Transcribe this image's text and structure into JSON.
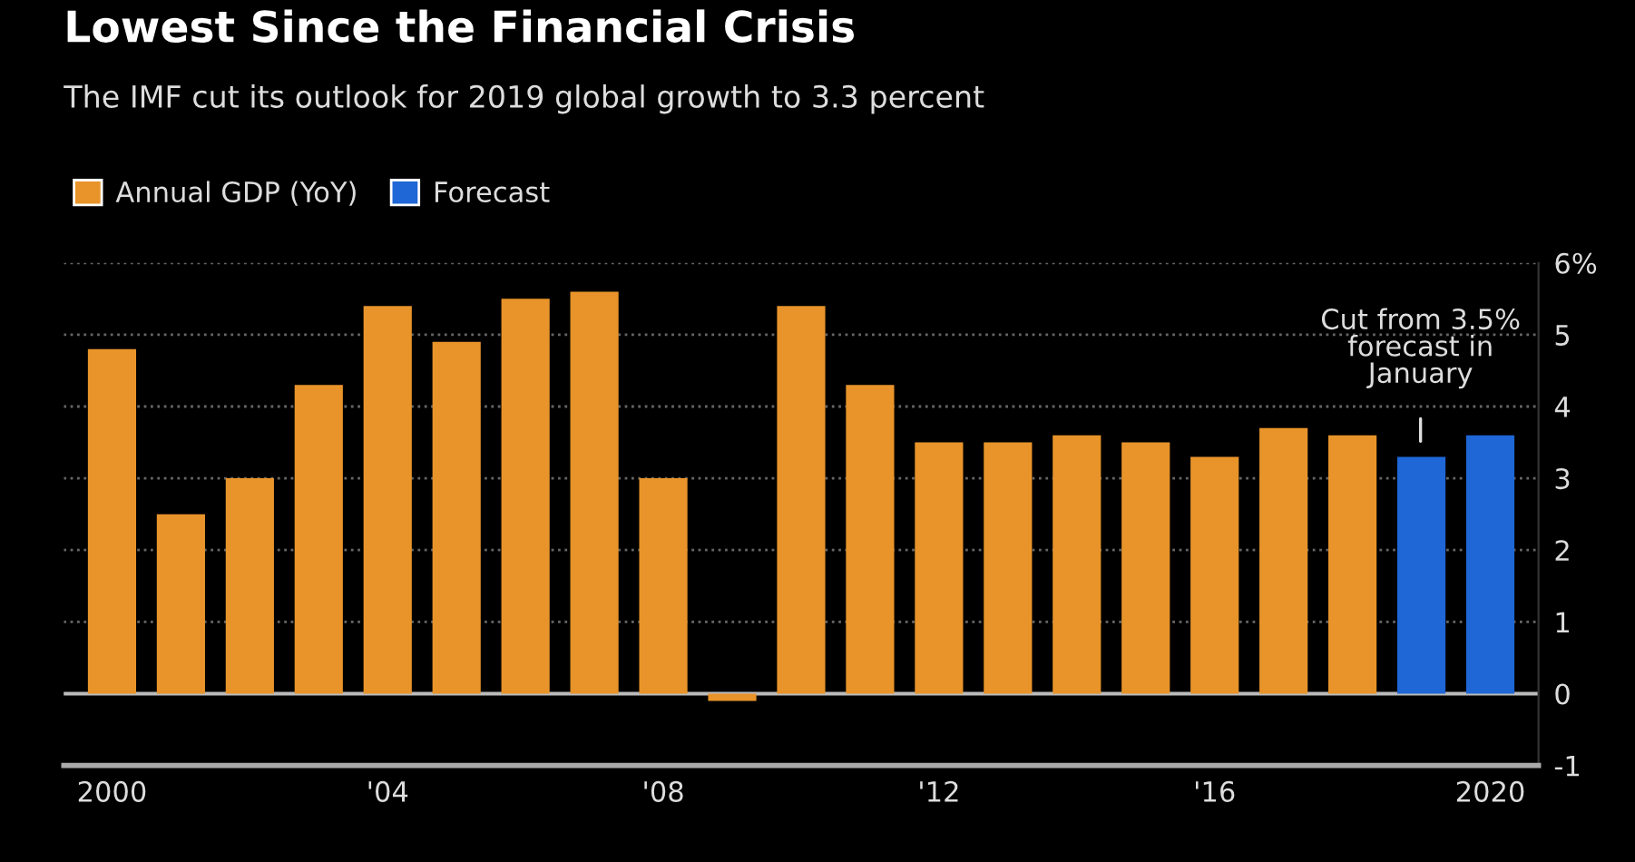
{
  "chart_data": {
    "type": "bar",
    "title": "Lowest Since the Financial Crisis",
    "subtitle": "The IMF cut its outlook for 2019 global growth to 3.3 percent",
    "series": [
      {
        "name": "Annual GDP (YoY)",
        "color": "#e8942a",
        "x": [
          2000,
          2001,
          2002,
          2003,
          2004,
          2005,
          2006,
          2007,
          2008,
          2009,
          2010,
          2011,
          2012,
          2013,
          2014,
          2015,
          2016,
          2017,
          2018
        ],
        "values": [
          4.8,
          2.5,
          3.0,
          4.3,
          5.4,
          4.9,
          5.5,
          5.6,
          3.0,
          -0.1,
          5.4,
          4.3,
          3.5,
          3.5,
          3.6,
          3.5,
          3.3,
          3.7,
          3.6
        ]
      },
      {
        "name": "Forecast",
        "color": "#1f66d6",
        "x": [
          2019,
          2020
        ],
        "values": [
          3.3,
          3.6
        ]
      }
    ],
    "xlim": [
      1999.3,
      2020.7
    ],
    "xticks": [
      {
        "value": 2000,
        "label": "2000"
      },
      {
        "value": 2004,
        "label": "'04"
      },
      {
        "value": 2008,
        "label": "'08"
      },
      {
        "value": 2012,
        "label": "'12"
      },
      {
        "value": 2016,
        "label": "'16"
      },
      {
        "value": 2020,
        "label": "2020"
      }
    ],
    "ylim": [
      -1,
      6
    ],
    "yticks": [
      -1,
      0,
      1,
      2,
      3,
      4,
      5,
      {
        "value": 6,
        "label": "6%"
      }
    ],
    "grid": "y",
    "legend": "top left",
    "ref_lines": [
      {
        "axis": "y",
        "value": 0,
        "color": "#bbbbbb",
        "line_style": "solid"
      }
    ],
    "annotations": [
      "Cut from 3.5%\nforecast in\nJanuary"
    ]
  }
}
